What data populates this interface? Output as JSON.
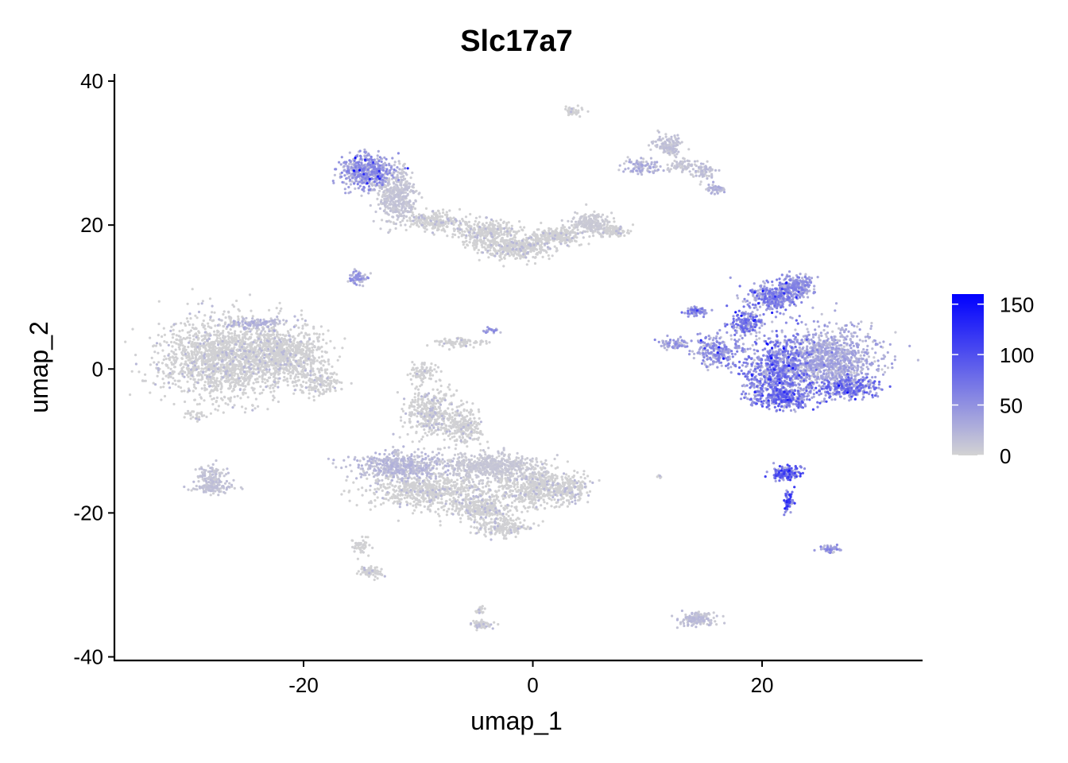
{
  "chart_data": {
    "type": "scatter",
    "title": "Slc17a7",
    "xlabel": "umap_1",
    "ylabel": "umap_2",
    "xlim": [
      -36.5,
      34
    ],
    "ylim": [
      -40.5,
      41
    ],
    "x_ticks": [
      -20,
      0,
      20
    ],
    "x_tick_labels": [
      "-20",
      "0",
      "20"
    ],
    "y_ticks": [
      -40,
      -20,
      0,
      20,
      40
    ],
    "y_tick_labels": [
      "-40",
      "-20",
      "0",
      "20",
      "40"
    ],
    "grid": false,
    "legend": {
      "position": "right",
      "type": "colorbar",
      "range": [
        0,
        160
      ],
      "ticks": [
        0,
        50,
        100,
        150
      ],
      "tick_labels": [
        "0",
        "50",
        "100",
        "150"
      ],
      "low_color": "#d3d3d3",
      "high_color": "#0000ff"
    },
    "clusters": [
      {
        "cx": -27,
        "cy": 1.5,
        "rx": 5.5,
        "ry": 5.5,
        "n": 1600,
        "expr": 2
      },
      {
        "cx": -21.5,
        "cy": 2,
        "rx": 3.5,
        "ry": 3.5,
        "n": 700,
        "expr": 4
      },
      {
        "cx": -18.5,
        "cy": -2,
        "rx": 1.8,
        "ry": 1.8,
        "n": 140,
        "expr": 2
      },
      {
        "cx": -24,
        "cy": 6.3,
        "rx": 2.5,
        "ry": 0.8,
        "n": 120,
        "expr": 22
      },
      {
        "cx": -29.5,
        "cy": -6.5,
        "rx": 0.8,
        "ry": 0.6,
        "n": 25,
        "expr": 2
      },
      {
        "cx": -14.5,
        "cy": 27.5,
        "rx": 2.2,
        "ry": 2.2,
        "n": 500,
        "expr": 45
      },
      {
        "cx": -11.8,
        "cy": 24,
        "rx": 1.6,
        "ry": 3.5,
        "n": 420,
        "expr": 10
      },
      {
        "cx": -8.5,
        "cy": 20.5,
        "rx": 2.5,
        "ry": 1.3,
        "n": 220,
        "expr": 4
      },
      {
        "cx": -4,
        "cy": 19,
        "rx": 2.8,
        "ry": 1.8,
        "n": 320,
        "expr": 3
      },
      {
        "cx": -1.5,
        "cy": 16.8,
        "rx": 3,
        "ry": 1.6,
        "n": 380,
        "expr": 2
      },
      {
        "cx": 2,
        "cy": 18.5,
        "rx": 2.3,
        "ry": 1.3,
        "n": 220,
        "expr": 4
      },
      {
        "cx": 5,
        "cy": 20.2,
        "rx": 1.6,
        "ry": 1.4,
        "n": 220,
        "expr": 6
      },
      {
        "cx": 7,
        "cy": 19.2,
        "rx": 1.2,
        "ry": 0.8,
        "n": 100,
        "expr": 4
      },
      {
        "cx": 3.5,
        "cy": 35.8,
        "rx": 0.8,
        "ry": 0.5,
        "n": 40,
        "expr": 2
      },
      {
        "cx": 9.5,
        "cy": 28.2,
        "rx": 1.5,
        "ry": 1.2,
        "n": 90,
        "expr": 25
      },
      {
        "cx": 11.8,
        "cy": 31,
        "rx": 1.3,
        "ry": 1.2,
        "n": 130,
        "expr": 12
      },
      {
        "cx": 13,
        "cy": 28.2,
        "rx": 1.2,
        "ry": 1,
        "n": 70,
        "expr": 10
      },
      {
        "cx": 15,
        "cy": 27.5,
        "rx": 0.9,
        "ry": 1.2,
        "n": 60,
        "expr": 15
      },
      {
        "cx": 16,
        "cy": 25,
        "rx": 0.8,
        "ry": 0.6,
        "n": 45,
        "expr": 22
      },
      {
        "cx": -15.2,
        "cy": 12.6,
        "rx": 0.8,
        "ry": 0.8,
        "n": 70,
        "expr": 38
      },
      {
        "cx": -6.3,
        "cy": 3.7,
        "rx": 2,
        "ry": 0.6,
        "n": 90,
        "expr": 2
      },
      {
        "cx": -3.5,
        "cy": 5.3,
        "rx": 0.8,
        "ry": 0.4,
        "n": 25,
        "expr": 40
      },
      {
        "cx": -9.5,
        "cy": -0.5,
        "rx": 1.3,
        "ry": 1.3,
        "n": 80,
        "expr": 2
      },
      {
        "cx": -9,
        "cy": -6,
        "rx": 2.2,
        "ry": 3.5,
        "n": 380,
        "expr": 2
      },
      {
        "cx": -6,
        "cy": -8,
        "rx": 1.6,
        "ry": 2.5,
        "n": 220,
        "expr": 2
      },
      {
        "cx": -11.5,
        "cy": -13.5,
        "rx": 4,
        "ry": 2,
        "n": 520,
        "expr": 18
      },
      {
        "cx": -3.5,
        "cy": -13.5,
        "rx": 4,
        "ry": 2,
        "n": 520,
        "expr": 8
      },
      {
        "cx": -9,
        "cy": -17,
        "rx": 5,
        "ry": 2.2,
        "n": 620,
        "expr": 4
      },
      {
        "cx": 0,
        "cy": -16.5,
        "rx": 3.2,
        "ry": 3,
        "n": 480,
        "expr": 3
      },
      {
        "cx": 3,
        "cy": -16.5,
        "rx": 2,
        "ry": 1.8,
        "n": 200,
        "expr": 3
      },
      {
        "cx": -4.5,
        "cy": -19.5,
        "rx": 2.8,
        "ry": 1.6,
        "n": 300,
        "expr": 2
      },
      {
        "cx": -2.5,
        "cy": -22,
        "rx": 2.5,
        "ry": 1.2,
        "n": 200,
        "expr": 2
      },
      {
        "cx": -28,
        "cy": -15,
        "rx": 1.2,
        "ry": 2,
        "n": 120,
        "expr": 12
      },
      {
        "cx": -27.8,
        "cy": -16.5,
        "rx": 1.8,
        "ry": 0.6,
        "n": 80,
        "expr": 12
      },
      {
        "cx": -15,
        "cy": -24.5,
        "rx": 0.8,
        "ry": 1.2,
        "n": 50,
        "expr": 2
      },
      {
        "cx": -14.2,
        "cy": -28.2,
        "rx": 1,
        "ry": 0.7,
        "n": 70,
        "expr": 2
      },
      {
        "cx": -4.5,
        "cy": -35.5,
        "rx": 0.9,
        "ry": 0.6,
        "n": 70,
        "expr": 2
      },
      {
        "cx": -4.6,
        "cy": -33.5,
        "rx": 0.4,
        "ry": 0.8,
        "n": 25,
        "expr": 2
      },
      {
        "cx": 21,
        "cy": 10,
        "rx": 2.2,
        "ry": 2,
        "n": 350,
        "expr": 55
      },
      {
        "cx": 23,
        "cy": 11.5,
        "rx": 1.6,
        "ry": 1.4,
        "n": 200,
        "expr": 45
      },
      {
        "cx": 18.6,
        "cy": 6.5,
        "rx": 1.5,
        "ry": 1.8,
        "n": 180,
        "expr": 60
      },
      {
        "cx": 14.2,
        "cy": 8,
        "rx": 1.1,
        "ry": 0.6,
        "n": 70,
        "expr": 55
      },
      {
        "cx": 16.2,
        "cy": 2.5,
        "rx": 2.2,
        "ry": 2.2,
        "n": 250,
        "expr": 45
      },
      {
        "cx": 12.5,
        "cy": 3.5,
        "rx": 1.3,
        "ry": 0.8,
        "n": 70,
        "expr": 40
      },
      {
        "cx": 21.5,
        "cy": 0,
        "rx": 3,
        "ry": 4.5,
        "n": 800,
        "expr": 60
      },
      {
        "cx": 26,
        "cy": 1.5,
        "rx": 4,
        "ry": 4,
        "n": 1000,
        "expr": 30
      },
      {
        "cx": 22,
        "cy": -4,
        "rx": 2.6,
        "ry": 1.6,
        "n": 260,
        "expr": 70
      },
      {
        "cx": 27.5,
        "cy": -2.5,
        "rx": 2.8,
        "ry": 1.5,
        "n": 300,
        "expr": 65
      },
      {
        "cx": 22,
        "cy": -14.5,
        "rx": 1.2,
        "ry": 1,
        "n": 150,
        "expr": 80
      },
      {
        "cx": 22.3,
        "cy": -18.5,
        "rx": 0.5,
        "ry": 1.5,
        "n": 60,
        "expr": 90
      },
      {
        "cx": 26,
        "cy": -25,
        "rx": 1,
        "ry": 0.6,
        "n": 50,
        "expr": 45
      },
      {
        "cx": 14.3,
        "cy": -34.8,
        "rx": 1.6,
        "ry": 0.9,
        "n": 150,
        "expr": 15
      },
      {
        "cx": 11,
        "cy": -15,
        "rx": 0.3,
        "ry": 0.2,
        "n": 6,
        "expr": 2
      }
    ]
  }
}
